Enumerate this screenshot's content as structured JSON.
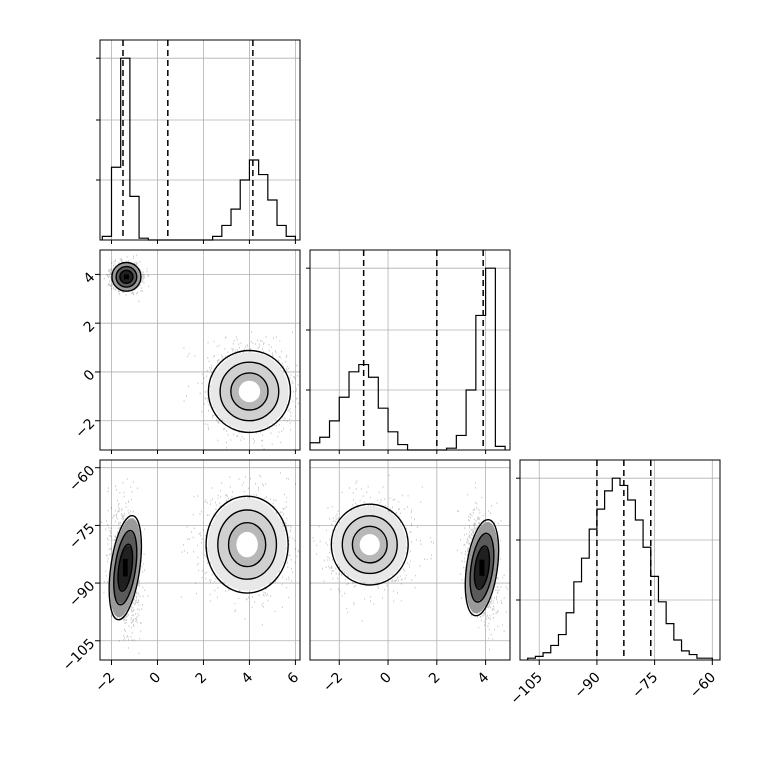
{
  "chart_data": {
    "type": "corner",
    "title": "",
    "parameters": [
      {
        "range": [
          -2.5,
          6.2
        ],
        "ticks": [
          -2,
          0,
          2,
          4,
          6
        ]
      },
      {
        "range": [
          -3.2,
          5.0
        ],
        "ticks": [
          -2,
          0,
          2,
          4
        ]
      },
      {
        "range": [
          -110,
          -58
        ],
        "ticks": [
          -105,
          -90,
          -75,
          -60
        ]
      }
    ],
    "histograms": [
      {
        "param": 0,
        "quantiles": [
          -1.5,
          0.45,
          4.15
        ],
        "bin_edges": [
          -2.4,
          -2.0,
          -1.6,
          -1.2,
          -0.8,
          -0.4,
          0.0,
          0.4,
          0.8,
          1.2,
          1.6,
          2.0,
          2.4,
          2.8,
          3.2,
          3.6,
          4.0,
          4.4,
          4.8,
          5.2,
          5.6,
          6.0
        ],
        "counts": [
          0.02,
          0.4,
          1.0,
          0.24,
          0.01,
          0,
          0,
          0,
          0,
          0,
          0,
          0,
          0.02,
          0.08,
          0.17,
          0.33,
          0.44,
          0.36,
          0.22,
          0.08,
          0.02
        ]
      },
      {
        "param": 1,
        "quantiles": [
          -1.0,
          2.0,
          3.9
        ],
        "bin_edges": [
          -3.2,
          -2.8,
          -2.4,
          -2.0,
          -1.6,
          -1.2,
          -0.8,
          -0.4,
          0.0,
          0.4,
          0.8,
          1.2,
          1.6,
          2.0,
          2.4,
          2.8,
          3.2,
          3.6,
          4.0,
          4.4,
          4.8
        ],
        "counts": [
          0.04,
          0.07,
          0.16,
          0.29,
          0.43,
          0.47,
          0.4,
          0.23,
          0.1,
          0.03,
          0,
          0,
          0,
          0,
          0.01,
          0.08,
          0.33,
          0.74,
          1.0,
          0.02
        ]
      },
      {
        "param": 2,
        "quantiles": [
          -90,
          -83,
          -76
        ],
        "bin_edges": [
          -108,
          -106,
          -104,
          -102,
          -100,
          -98,
          -96,
          -94,
          -92,
          -90,
          -88,
          -86,
          -84,
          -82,
          -80,
          -78,
          -76,
          -74,
          -72,
          -70,
          -68,
          -66,
          -64,
          -62,
          -60
        ],
        "counts": [
          0.01,
          0.02,
          0.04,
          0.08,
          0.14,
          0.26,
          0.43,
          0.56,
          0.72,
          0.83,
          0.93,
          1.0,
          0.96,
          0.88,
          0.77,
          0.62,
          0.46,
          0.32,
          0.2,
          0.11,
          0.05,
          0.03,
          0.01,
          0.01
        ]
      }
    ],
    "scatter_panels": [
      {
        "x_param": 0,
        "y_param": 1,
        "modes": [
          {
            "center": [
              -1.35,
              3.9
            ],
            "sigma": [
              0.3,
              0.28
            ],
            "weight": 0.45,
            "dense": true
          },
          {
            "center": [
              4.0,
              -0.8
            ],
            "sigma": [
              0.85,
              0.8
            ],
            "weight": 0.55,
            "dense": false
          }
        ]
      },
      {
        "x_param": 0,
        "y_param": 2,
        "modes": [
          {
            "center": [
              -1.4,
              -86
            ],
            "sigma": [
              0.3,
              6.5
            ],
            "weight": 0.45,
            "dense": true
          },
          {
            "center": [
              3.9,
              -80
            ],
            "sigma": [
              0.85,
              6.0
            ],
            "weight": 0.55,
            "dense": false
          }
        ]
      },
      {
        "x_param": 1,
        "y_param": 2,
        "modes": [
          {
            "center": [
              -0.75,
              -80
            ],
            "sigma": [
              0.75,
              5.0
            ],
            "weight": 0.55,
            "dense": false
          },
          {
            "center": [
              3.85,
              -86
            ],
            "sigma": [
              0.3,
              6.0
            ],
            "weight": 0.45,
            "dense": true
          }
        ]
      }
    ],
    "grid": true
  }
}
